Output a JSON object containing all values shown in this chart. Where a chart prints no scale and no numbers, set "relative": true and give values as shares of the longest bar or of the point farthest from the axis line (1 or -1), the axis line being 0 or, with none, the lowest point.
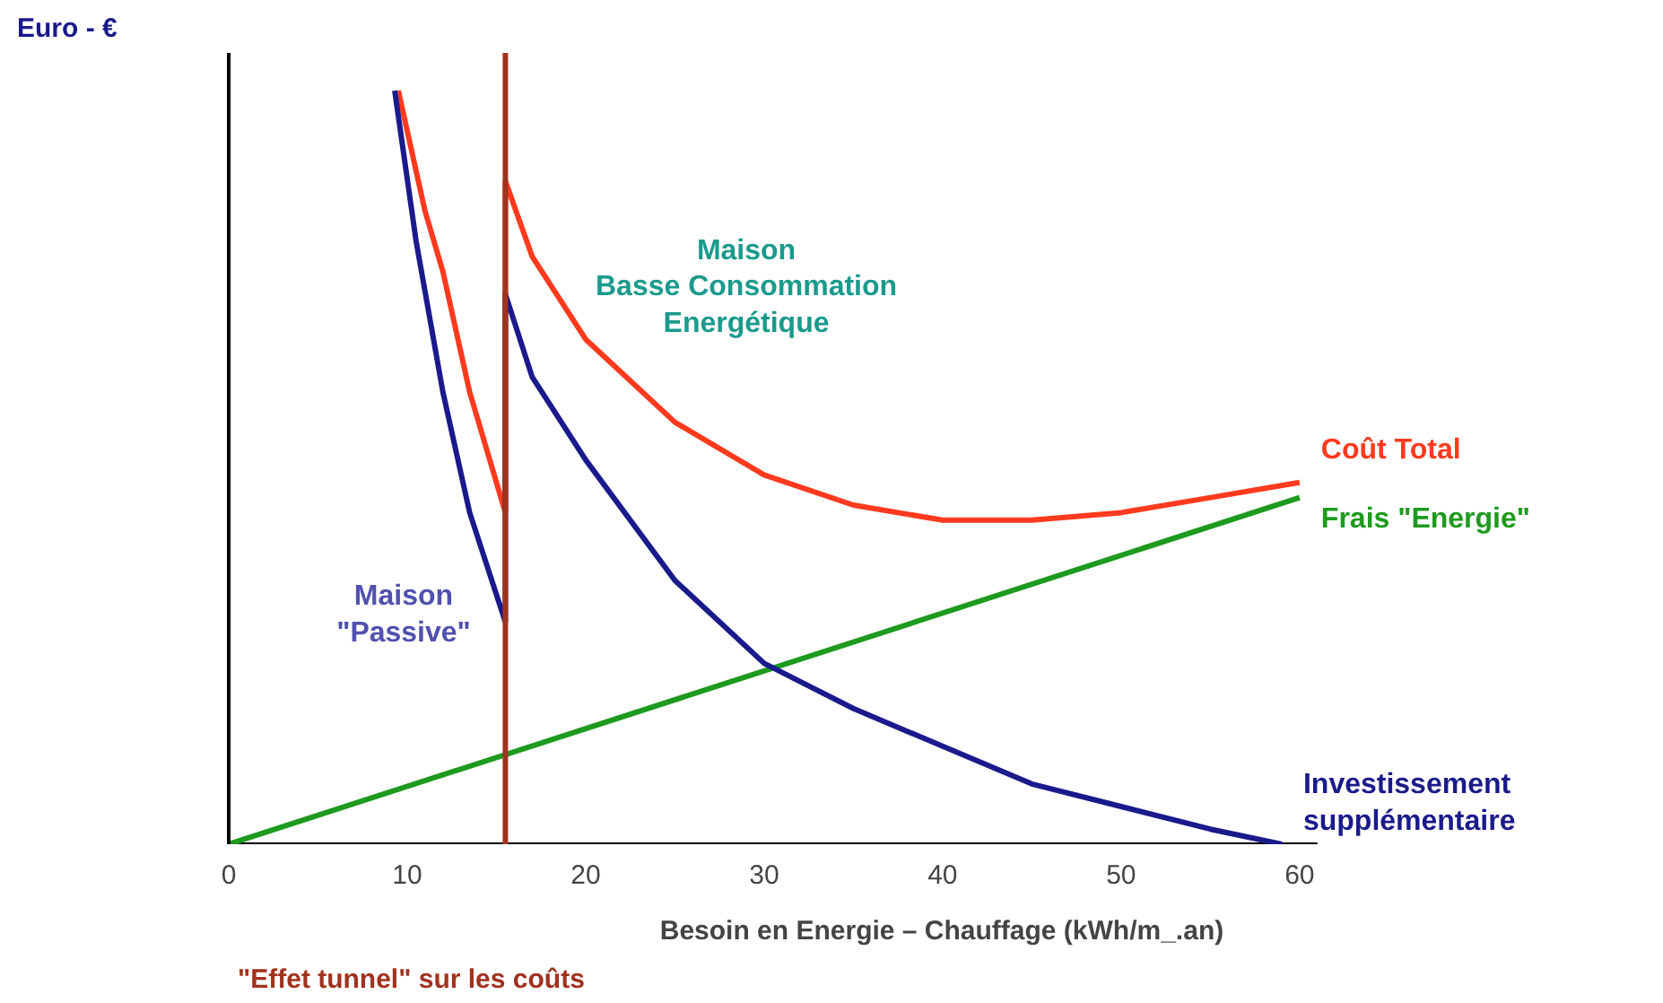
{
  "chart_data": {
    "type": "line",
    "relative": true,
    "xlabel": "Besoin en Energie – Chauffage (kWh/m_.an)",
    "ylabel": "Euro - €",
    "xlim": [
      0,
      61
    ],
    "xticks": [
      0,
      10,
      20,
      30,
      40,
      50,
      60
    ],
    "series": [
      {
        "name": "Coût Total",
        "color": "#ff3a1e",
        "x": [
          9.5,
          11,
          12,
          13.5,
          15.5,
          15.5,
          17,
          20,
          25,
          30,
          35,
          40,
          45,
          50,
          55,
          60
        ],
        "values": [
          1,
          0.84,
          0.76,
          0.6,
          0.44,
          0.88,
          0.78,
          0.67,
          0.56,
          0.49,
          0.45,
          0.43,
          0.43,
          0.44,
          0.46,
          0.48
        ]
      },
      {
        "name": "Frais \"Energie\"",
        "color": "#1e9a1e",
        "x": [
          0,
          60
        ],
        "values": [
          0,
          0.46
        ]
      },
      {
        "name": "Investissement supplémentaire",
        "color": "#1a1a8c",
        "x": [
          9.3,
          10.5,
          12,
          13.5,
          15.5,
          15.5,
          17,
          20,
          25,
          30,
          35,
          40,
          45,
          50,
          55,
          59
        ],
        "values": [
          1,
          0.8,
          0.6,
          0.44,
          0.295,
          0.73,
          0.62,
          0.51,
          0.35,
          0.24,
          0.18,
          0.13,
          0.08,
          0.05,
          0.02,
          0
        ]
      }
    ],
    "ref_lines": [
      {
        "axis": "x",
        "value": 15.5,
        "label": "\"Effet tunnel\" sur les coûts",
        "color": "#a0321e"
      }
    ],
    "annotations": [
      "Maison\nBasse Consommation\nEnergétique",
      "Maison\n\"Passive\""
    ]
  }
}
